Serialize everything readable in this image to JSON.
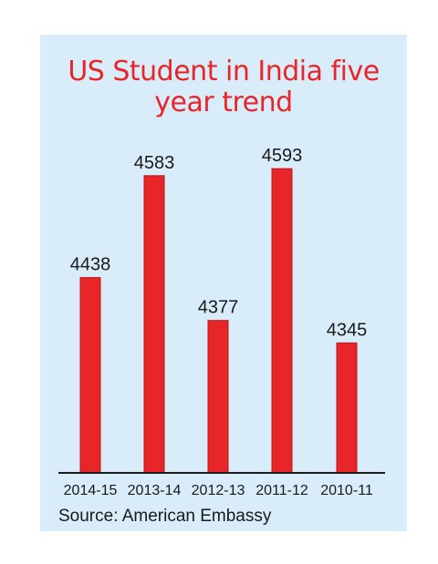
{
  "chart_data": {
    "type": "bar",
    "title_lines": [
      "US Student in India five",
      "year trend"
    ],
    "categories": [
      "2014-15",
      "2013-14",
      "2012-13",
      "2011-12",
      "2010-11"
    ],
    "values": [
      4438,
      4583,
      4377,
      4593,
      4345
    ],
    "value_labels": [
      "4438",
      "4583",
      "4377",
      "4593",
      "4345"
    ],
    "ylim": [
      4160,
      4610
    ],
    "bar_color": "#e8262a",
    "panel_color": "#d9ecfa",
    "grid": false,
    "legend": "none"
  },
  "source": "Source: American Embassy"
}
